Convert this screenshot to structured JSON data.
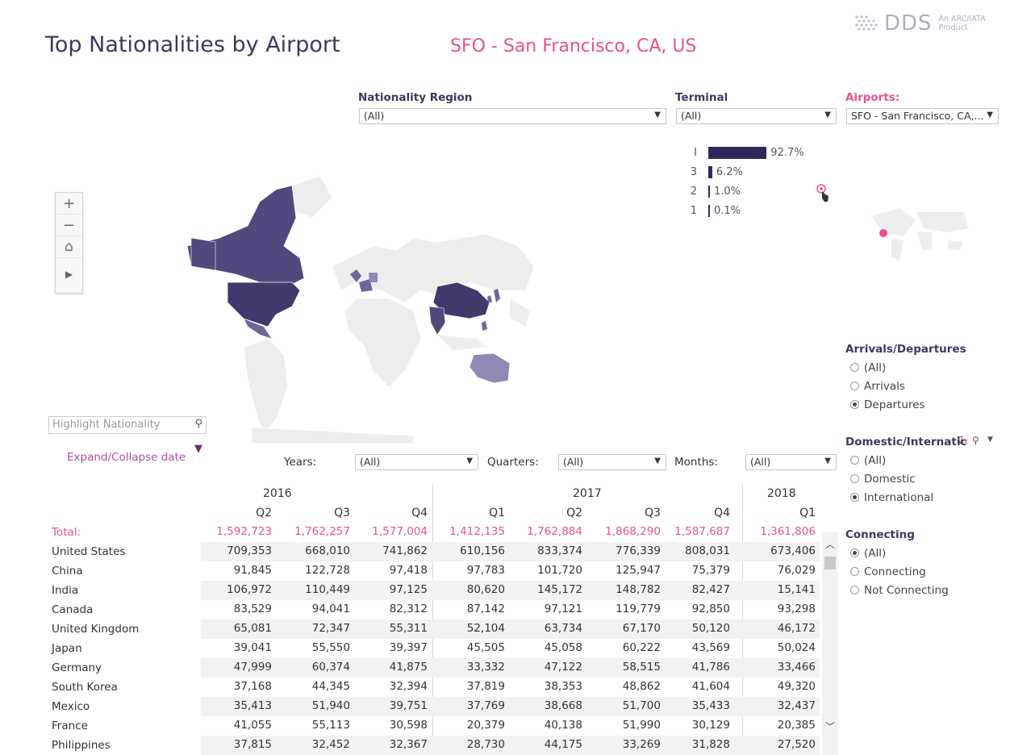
{
  "header": {
    "title": "Top Nationalities by Airport",
    "subtitle": "SFO - San Francisco, CA, US",
    "logo_text": "DDS",
    "logo_tagline_1": "An ARC/IATA",
    "logo_tagline_2": "Product"
  },
  "filters": {
    "nationality_region": {
      "label": "Nationality Region",
      "value": "(All)"
    },
    "terminal": {
      "label": "Terminal",
      "value": "(All)"
    },
    "airports": {
      "label": "Airports:",
      "value": "SFO - San Francisco, CA,..."
    }
  },
  "terminal_bars": [
    {
      "label": "I",
      "pct": 92.7,
      "text": "92.7%"
    },
    {
      "label": "3",
      "pct": 6.2,
      "text": "6.2%"
    },
    {
      "label": "2",
      "pct": 1.0,
      "text": "1.0%"
    },
    {
      "label": "1",
      "pct": 0.1,
      "text": "0.1%"
    }
  ],
  "map_controls": {
    "zoom_in": "+",
    "zoom_out": "−",
    "home": "⌂",
    "play": "▶"
  },
  "highlight": {
    "placeholder": "Highlight Nationality"
  },
  "expand_label": "Expand/Collapse date",
  "period_filters": {
    "years": {
      "label": "Years:",
      "value": "(All)"
    },
    "quarters": {
      "label": "Quarters:",
      "value": "(All)"
    },
    "months": {
      "label": "Months:",
      "value": "(All)"
    }
  },
  "arrivals_departures": {
    "title": "Arrivals/Departures",
    "options": [
      "(All)",
      "Arrivals",
      "Departures"
    ],
    "selected": 2
  },
  "domestic_international": {
    "title": "Domestic/Internatic",
    "options": [
      "(All)",
      "Domestic",
      "International"
    ],
    "selected": 2
  },
  "connecting": {
    "title": "Connecting",
    "options": [
      "(All)",
      "Connecting",
      "Not Connecting"
    ],
    "selected": 0
  },
  "table": {
    "years": [
      {
        "label": "2016"
      },
      {
        "label": "2017"
      },
      {
        "label": "2018"
      }
    ],
    "quarters": [
      "Q2",
      "Q3",
      "Q4",
      "Q1",
      "Q2",
      "Q3",
      "Q4",
      "Q1"
    ],
    "total": {
      "name": "Total:",
      "values": [
        "1,592,723",
        "1,762,257",
        "1,577,004",
        "1,412,135",
        "1,762,884",
        "1,868,290",
        "1,587,687",
        "1,361,806"
      ]
    },
    "rows": [
      {
        "name": "United States",
        "values": [
          "709,353",
          "668,010",
          "741,862",
          "610,156",
          "833,374",
          "776,339",
          "808,031",
          "673,406"
        ]
      },
      {
        "name": "China",
        "values": [
          "91,845",
          "122,728",
          "97,418",
          "97,783",
          "101,720",
          "125,947",
          "75,379",
          "76,029"
        ]
      },
      {
        "name": "India",
        "values": [
          "106,972",
          "110,449",
          "97,125",
          "80,620",
          "145,172",
          "148,782",
          "82,427",
          "15,141"
        ]
      },
      {
        "name": "Canada",
        "values": [
          "83,529",
          "94,041",
          "82,312",
          "87,142",
          "97,121",
          "119,779",
          "92,850",
          "93,298"
        ]
      },
      {
        "name": "United Kingdom",
        "values": [
          "65,081",
          "72,347",
          "55,311",
          "52,104",
          "63,734",
          "67,170",
          "50,120",
          "46,172"
        ]
      },
      {
        "name": "Japan",
        "values": [
          "39,041",
          "55,550",
          "39,397",
          "45,505",
          "45,058",
          "60,222",
          "43,569",
          "50,024"
        ]
      },
      {
        "name": "Germany",
        "values": [
          "47,999",
          "60,374",
          "41,875",
          "33,332",
          "47,122",
          "58,515",
          "41,786",
          "33,466"
        ]
      },
      {
        "name": "South Korea",
        "values": [
          "37,168",
          "44,345",
          "32,394",
          "37,819",
          "38,353",
          "48,862",
          "41,604",
          "49,320"
        ]
      },
      {
        "name": "Mexico",
        "values": [
          "35,413",
          "51,940",
          "39,751",
          "37,769",
          "38,668",
          "51,700",
          "35,433",
          "32,437"
        ]
      },
      {
        "name": "France",
        "values": [
          "41,055",
          "55,113",
          "30,598",
          "20,379",
          "40,138",
          "51,990",
          "30,129",
          "20,385"
        ]
      },
      {
        "name": "Philippines",
        "values": [
          "37,815",
          "32,452",
          "32,367",
          "28,730",
          "44,175",
          "33,269",
          "31,828",
          "27,520"
        ]
      }
    ]
  },
  "colors": {
    "accent": "#e8508f",
    "title": "#3b3a5e",
    "bar": "#2a2a5e",
    "map_dark": "#4f4a7e",
    "map_mid": "#6d679b",
    "map_light": "#8e8ab5",
    "land": "#ededed"
  }
}
